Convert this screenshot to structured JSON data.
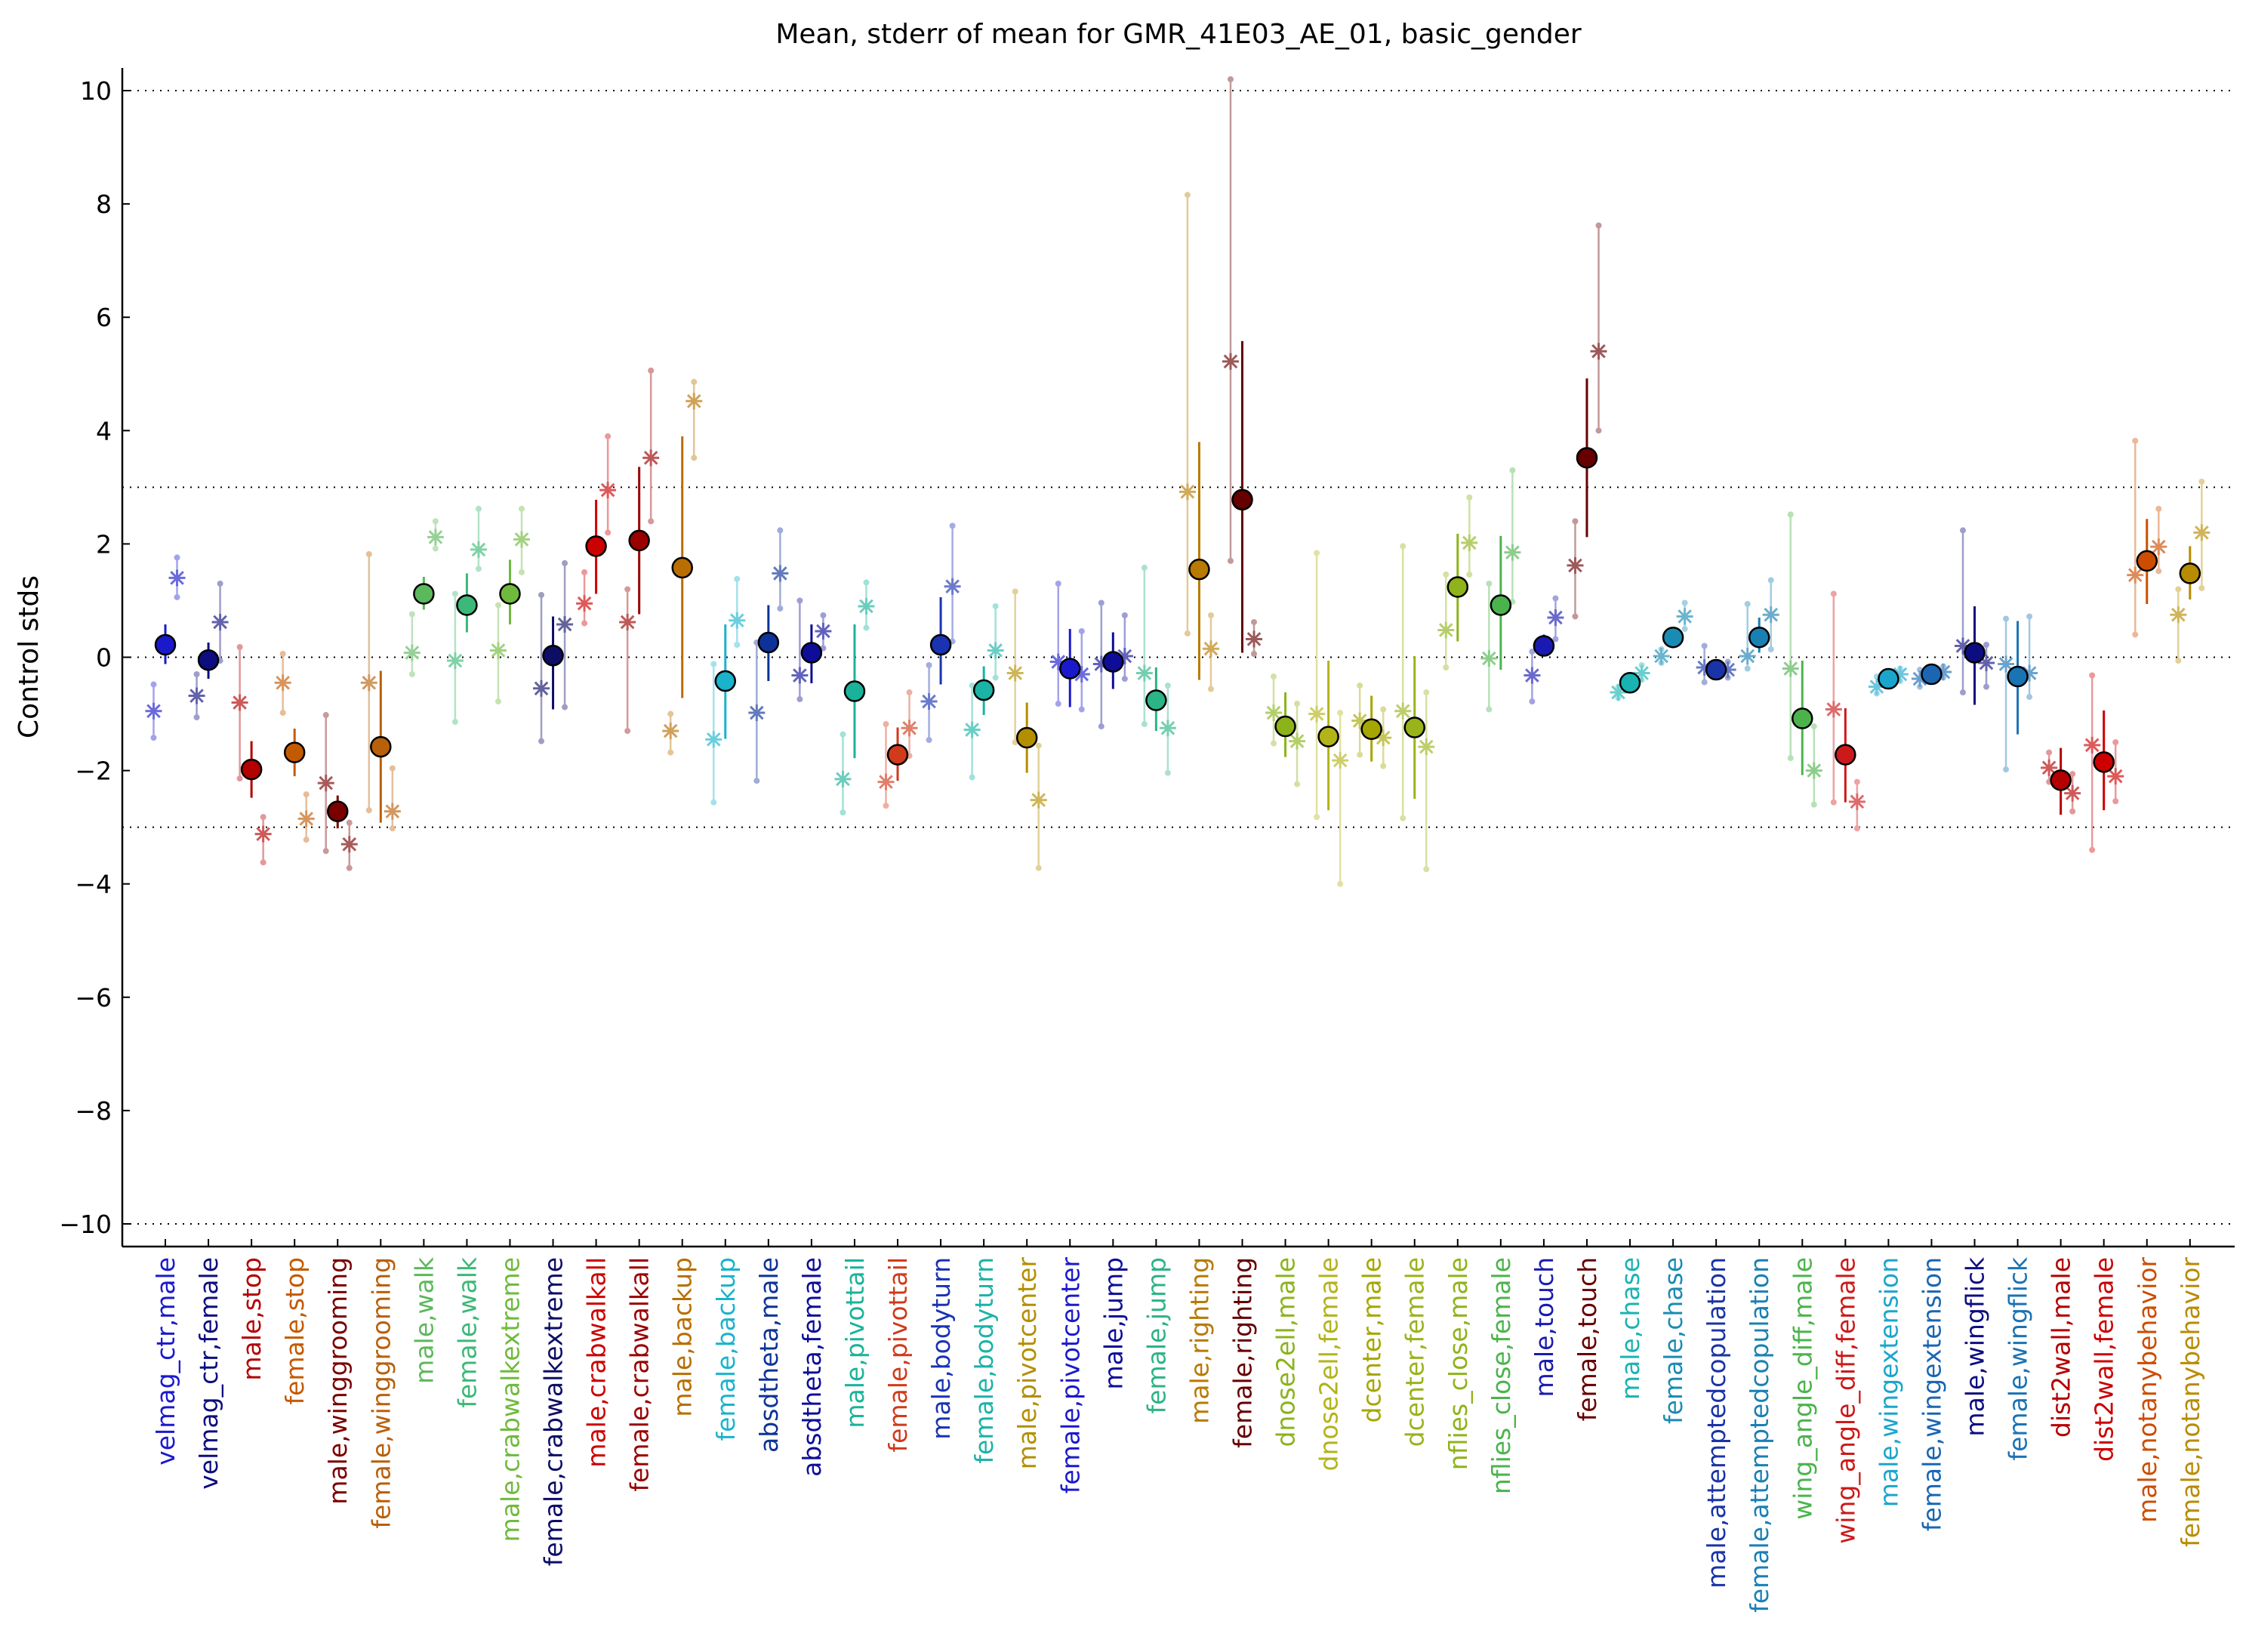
{
  "chart_data": {
    "type": "scatter",
    "title": "Mean, stderr of mean for GMR_41E03_AE_01, basic_gender",
    "ylabel": "Control stds",
    "xlabel": "",
    "ylim": [
      -10.4,
      10.4
    ],
    "yticks": [
      -10,
      -8,
      -6,
      -4,
      -2,
      0,
      2,
      4,
      6,
      8,
      10
    ],
    "reference_lines": [
      -10,
      -3,
      0,
      3,
      10
    ],
    "grid": false,
    "categories": [
      "velmag_ctr,male",
      "velmag_ctr,female",
      "male,stop",
      "female,stop",
      "male,winggrooming",
      "female,winggrooming",
      "male,walk",
      "female,walk",
      "male,crabwalkextreme",
      "female,crabwalkextreme",
      "male,crabwalkall",
      "female,crabwalkall",
      "male,backup",
      "female,backup",
      "absdtheta,male",
      "absdtheta,female",
      "male,pivottail",
      "female,pivottail",
      "male,bodyturn",
      "female,bodyturn",
      "male,pivotcenter",
      "female,pivotcenter",
      "male,jump",
      "female,jump",
      "male,righting",
      "female,righting",
      "dnose2ell,male",
      "dnose2ell,female",
      "dcenter,male",
      "dcenter,female",
      "nflies_close,male",
      "nflies_close,female",
      "male,touch",
      "female,touch",
      "male,chase",
      "female,chase",
      "male,attemptedcopulation",
      "female,attemptedcopulation",
      "wing_angle_diff,male",
      "wing_angle_diff,female",
      "male,wingextension",
      "female,wingextension",
      "male,wingflick",
      "female,wingflick",
      "dist2wall,male",
      "dist2wall,female",
      "male,notanybehavior",
      "female,notanybehavior"
    ],
    "colors": [
      "#1a1acc",
      "#0d0d80",
      "#b30000",
      "#c45a00",
      "#7a0000",
      "#b8600a",
      "#5cb85c",
      "#3cb878",
      "#6fba3c",
      "#0d0d66",
      "#cc0000",
      "#990000",
      "#b86e00",
      "#1ab3cc",
      "#0d3399",
      "#0d0d99",
      "#1ab39a",
      "#d13a1a",
      "#1a33b3",
      "#1ab3a6",
      "#b38f00",
      "#1a1acc",
      "#0d0d99",
      "#2cb386",
      "#b87a00",
      "#660000",
      "#8cb31a",
      "#b3b31a",
      "#a6a600",
      "#99b31a",
      "#8fb31a",
      "#4cb34c",
      "#1a1ab3",
      "#660000",
      "#1ab3b3",
      "#1a8cb3",
      "#1a33a6",
      "#1a80b3",
      "#4cb34c",
      "#cc1a1a",
      "#1aa6cc",
      "#1a66b3",
      "#0d0d80",
      "#1a73b3",
      "#b30000",
      "#cc0000",
      "#cc4d00",
      "#b88c00"
    ],
    "series": [
      {
        "name": "",
        "values": [
          0.22,
          -0.05,
          -1.98,
          -1.68,
          -2.72,
          -1.58,
          1.12,
          0.92,
          1.12,
          0.03,
          1.96,
          2.06,
          1.58,
          -0.42,
          0.26,
          0.08,
          -0.6,
          -1.72,
          0.22,
          -0.58,
          -1.42,
          -0.2,
          -0.08,
          -0.76,
          1.55,
          2.78,
          -1.22,
          -1.4,
          -1.27,
          -1.24,
          1.24,
          0.92,
          0.2,
          3.52,
          -0.45,
          0.35,
          -0.22,
          0.35,
          -1.08,
          -1.72,
          -0.38,
          -0.3,
          0.08,
          -0.34,
          -2.17,
          -1.85,
          1.7,
          1.48
        ],
        "err_low": [
          -0.12,
          -0.38,
          -2.48,
          -2.1,
          -3.02,
          -2.92,
          0.84,
          0.44,
          0.58,
          -0.92,
          1.12,
          0.76,
          -0.72,
          -1.44,
          -0.42,
          -0.46,
          -1.78,
          -2.18,
          -0.48,
          -1.02,
          -2.04,
          -0.88,
          -0.56,
          -1.3,
          -0.4,
          0.08,
          -1.76,
          -2.7,
          -1.84,
          -2.5,
          0.28,
          -0.22,
          0.02,
          2.12,
          -0.62,
          0.16,
          -0.34,
          0.08,
          -2.08,
          -2.56,
          -0.52,
          -0.44,
          -0.84,
          -1.36,
          -2.78,
          -2.7,
          0.94,
          1.02
        ],
        "err_high": [
          0.58,
          0.26,
          -1.48,
          -1.26,
          -2.44,
          -0.24,
          1.42,
          1.48,
          1.72,
          0.72,
          2.78,
          3.36,
          3.9,
          0.58,
          0.92,
          0.58,
          0.58,
          -1.24,
          1.06,
          -0.16,
          -0.8,
          0.5,
          0.44,
          -0.18,
          3.8,
          5.58,
          -0.62,
          -0.06,
          -0.68,
          0.02,
          2.18,
          2.14,
          0.4,
          4.92,
          -0.28,
          0.54,
          -0.1,
          0.7,
          -0.06,
          -0.9,
          -0.24,
          -0.14,
          0.9,
          0.64,
          -1.6,
          -0.94,
          2.44,
          1.96
        ]
      }
    ],
    "sample_points": [
      {
        "i": 0,
        "offset": -0.4,
        "y": -0.95,
        "lo": -1.42,
        "hi": -0.48
      },
      {
        "i": 0,
        "offset": 0.4,
        "y": 1.4,
        "lo": 1.06,
        "hi": 1.76
      },
      {
        "i": 1,
        "offset": -0.4,
        "y": -0.68,
        "lo": -1.06,
        "hi": -0.3
      },
      {
        "i": 1,
        "offset": 0.4,
        "y": 0.62,
        "lo": -0.06,
        "hi": 1.3
      },
      {
        "i": 2,
        "offset": -0.4,
        "y": -0.8,
        "lo": -2.14,
        "hi": 0.18
      },
      {
        "i": 2,
        "offset": 0.4,
        "y": -3.12,
        "lo": -3.62,
        "hi": -2.82
      },
      {
        "i": 3,
        "offset": -0.4,
        "y": -0.45,
        "lo": -0.98,
        "hi": 0.06
      },
      {
        "i": 3,
        "offset": 0.4,
        "y": -2.85,
        "lo": -3.22,
        "hi": -2.42
      },
      {
        "i": 4,
        "offset": -0.4,
        "y": -2.22,
        "lo": -3.42,
        "hi": -1.02
      },
      {
        "i": 4,
        "offset": 0.4,
        "y": -3.3,
        "lo": -3.72,
        "hi": -2.92
      },
      {
        "i": 5,
        "offset": -0.4,
        "y": -0.45,
        "lo": -2.7,
        "hi": 1.82
      },
      {
        "i": 5,
        "offset": 0.4,
        "y": -2.72,
        "lo": -3.02,
        "hi": -1.96
      },
      {
        "i": 6,
        "offset": -0.4,
        "y": 0.08,
        "lo": -0.3,
        "hi": 0.76
      },
      {
        "i": 6,
        "offset": 0.4,
        "y": 2.12,
        "lo": 1.92,
        "hi": 2.4
      },
      {
        "i": 7,
        "offset": -0.4,
        "y": -0.06,
        "lo": -1.14,
        "hi": 1.12
      },
      {
        "i": 7,
        "offset": 0.4,
        "y": 1.9,
        "lo": 1.56,
        "hi": 2.62
      },
      {
        "i": 8,
        "offset": -0.4,
        "y": 0.12,
        "lo": -0.78,
        "hi": 0.92
      },
      {
        "i": 8,
        "offset": 0.4,
        "y": 2.08,
        "lo": 1.5,
        "hi": 2.62
      },
      {
        "i": 9,
        "offset": -0.4,
        "y": -0.55,
        "lo": -1.48,
        "hi": 1.1
      },
      {
        "i": 9,
        "offset": 0.4,
        "y": 0.58,
        "lo": -0.88,
        "hi": 1.66
      },
      {
        "i": 10,
        "offset": -0.4,
        "y": 0.95,
        "lo": 0.6,
        "hi": 1.5
      },
      {
        "i": 10,
        "offset": 0.4,
        "y": 2.95,
        "lo": 2.2,
        "hi": 3.9
      },
      {
        "i": 11,
        "offset": -0.4,
        "y": 0.62,
        "lo": -1.3,
        "hi": 1.2
      },
      {
        "i": 11,
        "offset": 0.4,
        "y": 3.52,
        "lo": 2.4,
        "hi": 5.06
      },
      {
        "i": 12,
        "offset": -0.4,
        "y": -1.3,
        "lo": -1.68,
        "hi": -1.0
      },
      {
        "i": 12,
        "offset": 0.4,
        "y": 4.52,
        "lo": 3.52,
        "hi": 4.86
      },
      {
        "i": 13,
        "offset": -0.4,
        "y": -1.45,
        "lo": -2.56,
        "hi": -0.12
      },
      {
        "i": 13,
        "offset": 0.4,
        "y": 0.65,
        "lo": 0.22,
        "hi": 1.38
      },
      {
        "i": 14,
        "offset": -0.4,
        "y": -0.98,
        "lo": -2.18,
        "hi": 0.26
      },
      {
        "i": 14,
        "offset": 0.4,
        "y": 1.48,
        "lo": 0.86,
        "hi": 2.24
      },
      {
        "i": 15,
        "offset": -0.4,
        "y": -0.32,
        "lo": -0.74,
        "hi": 1.0
      },
      {
        "i": 15,
        "offset": 0.4,
        "y": 0.46,
        "lo": 0.16,
        "hi": 0.74
      },
      {
        "i": 16,
        "offset": -0.4,
        "y": -2.15,
        "lo": -2.74,
        "hi": -1.36
      },
      {
        "i": 16,
        "offset": 0.4,
        "y": 0.9,
        "lo": 0.52,
        "hi": 1.32
      },
      {
        "i": 17,
        "offset": -0.4,
        "y": -2.2,
        "lo": -2.62,
        "hi": -1.18
      },
      {
        "i": 17,
        "offset": 0.4,
        "y": -1.25,
        "lo": -1.74,
        "hi": -0.62
      },
      {
        "i": 18,
        "offset": -0.4,
        "y": -0.78,
        "lo": -1.46,
        "hi": -0.14
      },
      {
        "i": 18,
        "offset": 0.4,
        "y": 1.25,
        "lo": 0.28,
        "hi": 2.32
      },
      {
        "i": 19,
        "offset": -0.4,
        "y": -1.28,
        "lo": -2.12,
        "hi": -0.5
      },
      {
        "i": 19,
        "offset": 0.4,
        "y": 0.12,
        "lo": -0.36,
        "hi": 0.9
      },
      {
        "i": 20,
        "offset": -0.4,
        "y": -0.28,
        "lo": -1.5,
        "hi": 1.16
      },
      {
        "i": 20,
        "offset": 0.4,
        "y": -2.52,
        "lo": -3.72,
        "hi": -1.56
      },
      {
        "i": 21,
        "offset": -0.4,
        "y": -0.08,
        "lo": -0.82,
        "hi": 1.3
      },
      {
        "i": 21,
        "offset": 0.4,
        "y": -0.3,
        "lo": -0.92,
        "hi": 0.46
      },
      {
        "i": 22,
        "offset": -0.4,
        "y": -0.12,
        "lo": -1.22,
        "hi": 0.96
      },
      {
        "i": 22,
        "offset": 0.4,
        "y": 0.02,
        "lo": -0.38,
        "hi": 0.74
      },
      {
        "i": 23,
        "offset": -0.4,
        "y": -0.28,
        "lo": -1.18,
        "hi": 1.58
      },
      {
        "i": 23,
        "offset": 0.4,
        "y": -1.25,
        "lo": -2.04,
        "hi": -0.5
      },
      {
        "i": 24,
        "offset": -0.4,
        "y": 2.92,
        "lo": 0.42,
        "hi": 8.16
      },
      {
        "i": 24,
        "offset": 0.4,
        "y": 0.15,
        "lo": -0.56,
        "hi": 0.74
      },
      {
        "i": 25,
        "offset": -0.4,
        "y": 5.22,
        "lo": 1.7,
        "hi": 10.2
      },
      {
        "i": 25,
        "offset": 0.4,
        "y": 0.32,
        "lo": 0.06,
        "hi": 0.62
      },
      {
        "i": 26,
        "offset": -0.4,
        "y": -0.98,
        "lo": -1.52,
        "hi": -0.34
      },
      {
        "i": 26,
        "offset": 0.4,
        "y": -1.48,
        "lo": -2.24,
        "hi": -0.82
      },
      {
        "i": 27,
        "offset": -0.4,
        "y": -1.0,
        "lo": -2.82,
        "hi": 1.84
      },
      {
        "i": 27,
        "offset": 0.4,
        "y": -1.82,
        "lo": -4.0,
        "hi": -0.98
      },
      {
        "i": 28,
        "offset": -0.4,
        "y": -1.12,
        "lo": -1.72,
        "hi": -0.5
      },
      {
        "i": 28,
        "offset": 0.4,
        "y": -1.42,
        "lo": -1.92,
        "hi": -0.92
      },
      {
        "i": 29,
        "offset": -0.4,
        "y": -0.95,
        "lo": -2.84,
        "hi": 1.96
      },
      {
        "i": 29,
        "offset": 0.4,
        "y": -1.58,
        "lo": -3.74,
        "hi": -0.62
      },
      {
        "i": 30,
        "offset": -0.4,
        "y": 0.48,
        "lo": -0.18,
        "hi": 1.46
      },
      {
        "i": 30,
        "offset": 0.4,
        "y": 2.02,
        "lo": 1.46,
        "hi": 2.82
      },
      {
        "i": 31,
        "offset": -0.4,
        "y": -0.02,
        "lo": -0.92,
        "hi": 1.3
      },
      {
        "i": 31,
        "offset": 0.4,
        "y": 1.85,
        "lo": 0.98,
        "hi": 3.3
      },
      {
        "i": 32,
        "offset": -0.4,
        "y": -0.32,
        "lo": -0.78,
        "hi": 0.1
      },
      {
        "i": 32,
        "offset": 0.4,
        "y": 0.7,
        "lo": 0.32,
        "hi": 1.04
      },
      {
        "i": 33,
        "offset": -0.4,
        "y": 1.62,
        "lo": 0.72,
        "hi": 2.4
      },
      {
        "i": 33,
        "offset": 0.4,
        "y": 5.4,
        "lo": 4.0,
        "hi": 7.62
      },
      {
        "i": 34,
        "offset": -0.4,
        "y": -0.62,
        "lo": -0.72,
        "hi": -0.52
      },
      {
        "i": 34,
        "offset": 0.4,
        "y": -0.28,
        "lo": -0.4,
        "hi": -0.14
      },
      {
        "i": 35,
        "offset": -0.4,
        "y": 0.02,
        "lo": -0.1,
        "hi": 0.14
      },
      {
        "i": 35,
        "offset": 0.4,
        "y": 0.72,
        "lo": 0.5,
        "hi": 0.96
      },
      {
        "i": 36,
        "offset": -0.4,
        "y": -0.18,
        "lo": -0.44,
        "hi": 0.2
      },
      {
        "i": 36,
        "offset": 0.4,
        "y": -0.22,
        "lo": -0.36,
        "hi": -0.08
      },
      {
        "i": 37,
        "offset": -0.4,
        "y": 0.02,
        "lo": -0.2,
        "hi": 0.94
      },
      {
        "i": 37,
        "offset": 0.4,
        "y": 0.75,
        "lo": 0.14,
        "hi": 1.36
      },
      {
        "i": 38,
        "offset": -0.4,
        "y": -0.2,
        "lo": -1.78,
        "hi": 2.52
      },
      {
        "i": 38,
        "offset": 0.4,
        "y": -2.0,
        "lo": -2.6,
        "hi": -1.22
      },
      {
        "i": 39,
        "offset": -0.4,
        "y": -0.92,
        "lo": -2.56,
        "hi": 1.12
      },
      {
        "i": 39,
        "offset": 0.4,
        "y": -2.55,
        "lo": -3.02,
        "hi": -2.2
      },
      {
        "i": 40,
        "offset": -0.4,
        "y": -0.52,
        "lo": -0.64,
        "hi": -0.34
      },
      {
        "i": 40,
        "offset": 0.4,
        "y": -0.3,
        "lo": -0.42,
        "hi": -0.2
      },
      {
        "i": 41,
        "offset": -0.4,
        "y": -0.38,
        "lo": -0.52,
        "hi": -0.22
      },
      {
        "i": 41,
        "offset": 0.4,
        "y": -0.26,
        "lo": -0.36,
        "hi": -0.16
      },
      {
        "i": 42,
        "offset": -0.4,
        "y": 0.2,
        "lo": -0.62,
        "hi": 2.24
      },
      {
        "i": 42,
        "offset": 0.4,
        "y": -0.1,
        "lo": -0.52,
        "hi": 0.22
      },
      {
        "i": 43,
        "offset": -0.4,
        "y": -0.12,
        "lo": -1.98,
        "hi": 0.68
      },
      {
        "i": 43,
        "offset": 0.4,
        "y": -0.28,
        "lo": -0.7,
        "hi": 0.72
      },
      {
        "i": 44,
        "offset": -0.4,
        "y": -1.95,
        "lo": -2.2,
        "hi": -1.68
      },
      {
        "i": 44,
        "offset": 0.4,
        "y": -2.4,
        "lo": -2.72,
        "hi": -2.06
      },
      {
        "i": 45,
        "offset": -0.4,
        "y": -1.55,
        "lo": -3.4,
        "hi": -0.32
      },
      {
        "i": 45,
        "offset": 0.4,
        "y": -2.1,
        "lo": -2.54,
        "hi": -1.5
      },
      {
        "i": 46,
        "offset": -0.4,
        "y": 1.45,
        "lo": 0.4,
        "hi": 3.82
      },
      {
        "i": 46,
        "offset": 0.4,
        "y": 1.95,
        "lo": 1.52,
        "hi": 2.62
      },
      {
        "i": 47,
        "offset": -0.4,
        "y": 0.75,
        "lo": -0.06,
        "hi": 1.2
      },
      {
        "i": 47,
        "offset": 0.4,
        "y": 2.2,
        "lo": 1.22,
        "hi": 3.1
      }
    ]
  }
}
